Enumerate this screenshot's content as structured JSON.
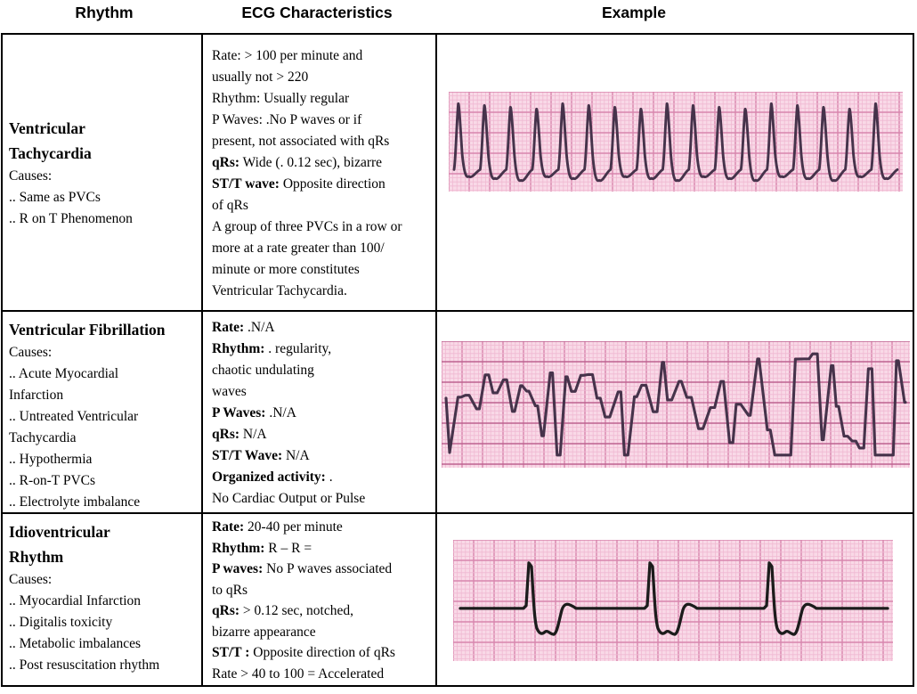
{
  "header": {
    "columns": [
      {
        "label": "Rhythm"
      },
      {
        "label": "ECG Characteristics"
      },
      {
        "label": "Example"
      }
    ]
  },
  "colors": {
    "table_border": "#000000",
    "paper_bg": "#f9d9e7",
    "grid_fine": "#f0b9d2",
    "grid_bold": "#d886ad",
    "grid_bold_dark": "#bd6390",
    "trace": "#46334b",
    "trace_dark": "#1c1c1c"
  },
  "rows": [
    {
      "rhythm": {
        "title_lines": [
          "Ventricular",
          "Tachycardia"
        ],
        "lines": [
          "Causes:",
          ".. Same as PVCs",
          ".. R on T Phenomenon"
        ]
      },
      "ecg": [
        {
          "b": "",
          "r": "Rate: > 100 per minute and"
        },
        {
          "b": "",
          "r": "usually not > 220"
        },
        {
          "b": "",
          "r": "Rhythm: Usually regular"
        },
        {
          "b": "",
          "r": "P Waves: .No  P waves or if"
        },
        {
          "b": "",
          "r": "present, not associated with qRs"
        },
        {
          "b": "qRs:",
          "r": " Wide (. 0.12 sec), bizarre"
        },
        {
          "b": "ST/T wave:",
          "r": " Opposite direction"
        },
        {
          "b": "",
          "r": "of qRs"
        },
        {
          "b": "",
          "r": "A group of three PVCs in a row or"
        },
        {
          "b": "",
          "r": "more at a rate greater than 100/"
        },
        {
          "b": "",
          "r": "minute or more constitutes"
        },
        {
          "b": "",
          "r": "Ventricular Tachycardia."
        }
      ],
      "example": {
        "type": "vtach",
        "name": "ventricular-tachycardia-ecg-strip",
        "complexes": 17
      }
    },
    {
      "rhythm": {
        "title_lines": [
          "Ventricular Fibrillation"
        ],
        "lines": [
          "Causes:",
          ".. Acute Myocardial",
          "Infarction",
          ".. Untreated Ventricular",
          "Tachycardia",
          ".. Hypothermia",
          ".. R-on-T PVCs",
          ".. Electrolyte imbalance"
        ]
      },
      "ecg": [
        {
          "b": "Rate:",
          "r": " .N/A"
        },
        {
          "b": "Rhythm:",
          "r": " . regularity,"
        },
        {
          "b": "",
          "r": "chaotic undulating"
        },
        {
          "b": "",
          "r": "waves"
        },
        {
          "b": "P Waves:",
          "r": " .N/A"
        },
        {
          "b": "qRs:",
          "r": " N/A"
        },
        {
          "b": "ST/T Wave:",
          "r": " N/A"
        },
        {
          "b": "Organized activity:",
          "r": " ."
        },
        {
          "b": "",
          "r": "No Cardiac Output or Pulse"
        }
      ],
      "example": {
        "type": "vfib",
        "name": "ventricular-fibrillation-ecg-strip"
      }
    },
    {
      "rhythm": {
        "title_lines": [
          "Idioventricular",
          "Rhythm"
        ],
        "lines": [
          "Causes:",
          ".. Myocardial Infarction",
          ".. Digitalis toxicity",
          ".. Metabolic imbalances",
          ".. Post resuscitation rhythm"
        ]
      },
      "ecg": [
        {
          "b": "Rate:",
          "r": " 20-40 per minute"
        },
        {
          "b": "Rhythm:",
          "r": " R – R ="
        },
        {
          "b": "P waves:",
          "r": " No P waves associated"
        },
        {
          "b": "",
          "r": "to qRs"
        },
        {
          "b": "qRs:",
          "r": " > 0.12 sec, notched,"
        },
        {
          "b": "",
          "r": "bizarre appearance"
        },
        {
          "b": "ST/T :",
          "r": " Opposite direction of qRs"
        },
        {
          "b": "",
          "r": "Rate > 40 to 100 = Accelerated"
        }
      ],
      "example": {
        "type": "idioventricular",
        "name": "idioventricular-rhythm-ecg-strip",
        "complexes": 3
      }
    }
  ]
}
